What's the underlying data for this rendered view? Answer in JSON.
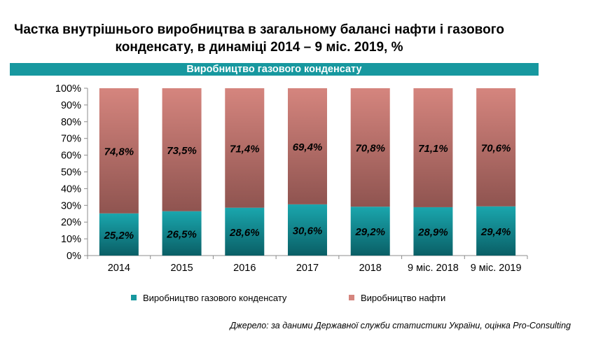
{
  "title_line1": "Частка внутрішнього виробництва в загальному балансі нафти і газового",
  "title_line2": "конденсату, в динаміці 2014 – 9 міс. 2019, %",
  "banner": "Виробництво газового конденсату",
  "source": "Джерело: за даними Державної служби статистики України, оцінка Pro-Consulting",
  "colors": {
    "condensate": "#17989f",
    "oil": "#d5857e",
    "banner": "#17989f"
  },
  "chart_data": {
    "type": "bar",
    "stacked": true,
    "categories": [
      "2014",
      "2015",
      "2016",
      "2017",
      "2018",
      "9 міс.  2018",
      "9 міс.  2019"
    ],
    "series": [
      {
        "name": "Виробництво газового конденсату",
        "values": [
          25.2,
          26.5,
          28.6,
          30.6,
          29.2,
          28.9,
          29.4
        ],
        "labels": [
          "25,2%",
          "26,5%",
          "28,6%",
          "30,6%",
          "29,2%",
          "28,9%",
          "29,4%"
        ]
      },
      {
        "name": "Виробництво нафти",
        "values": [
          74.8,
          73.5,
          71.4,
          69.4,
          70.8,
          71.1,
          70.6
        ],
        "labels": [
          "74,8%",
          "73,5%",
          "71,4%",
          "69,4%",
          "70,8%",
          "71,1%",
          "70,6%"
        ]
      }
    ],
    "yticks": [
      "0%",
      "10%",
      "20%",
      "30%",
      "40%",
      "50%",
      "60%",
      "70%",
      "80%",
      "90%",
      "100%"
    ],
    "ylim": [
      0,
      100
    ],
    "grid": false,
    "legend": "bottom"
  }
}
